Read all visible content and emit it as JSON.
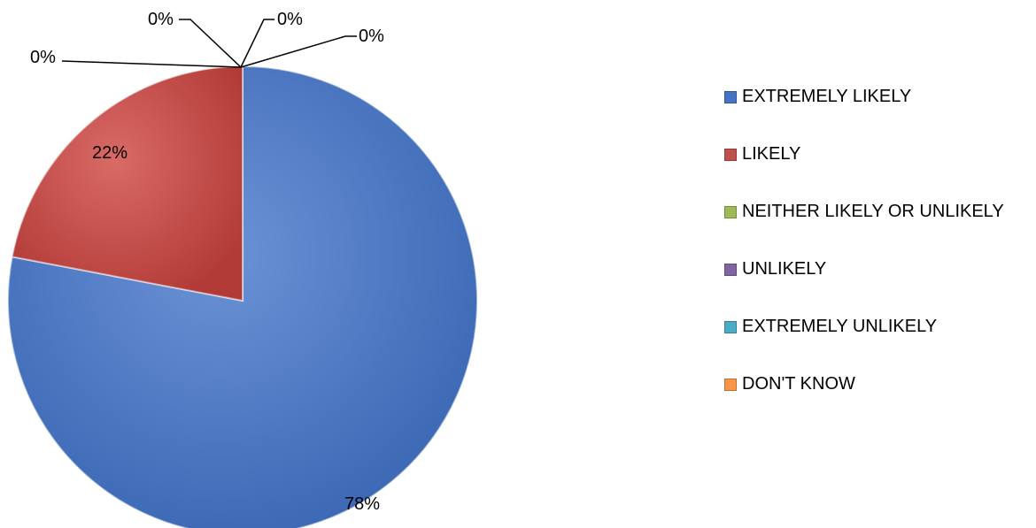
{
  "chart_data": {
    "type": "pie",
    "title": "",
    "categories": [
      "EXTREMELY LIKELY",
      "LIKELY",
      "NEITHER LIKELY OR UNLIKELY",
      "UNLIKELY",
      "EXTREMELY UNLIKELY",
      "DON'T KNOW"
    ],
    "values": [
      78,
      22,
      0,
      0,
      0,
      0
    ],
    "data_labels": [
      "78%",
      "22%",
      "0%",
      "0%",
      "0%",
      "0%"
    ],
    "colors": [
      "#4472C4",
      "#C0504D",
      "#9BBB59",
      "#8064A2",
      "#4BACC6",
      "#F79646"
    ],
    "legend_position": "right",
    "start_angle": "12 o'clock",
    "direction": "clockwise"
  }
}
